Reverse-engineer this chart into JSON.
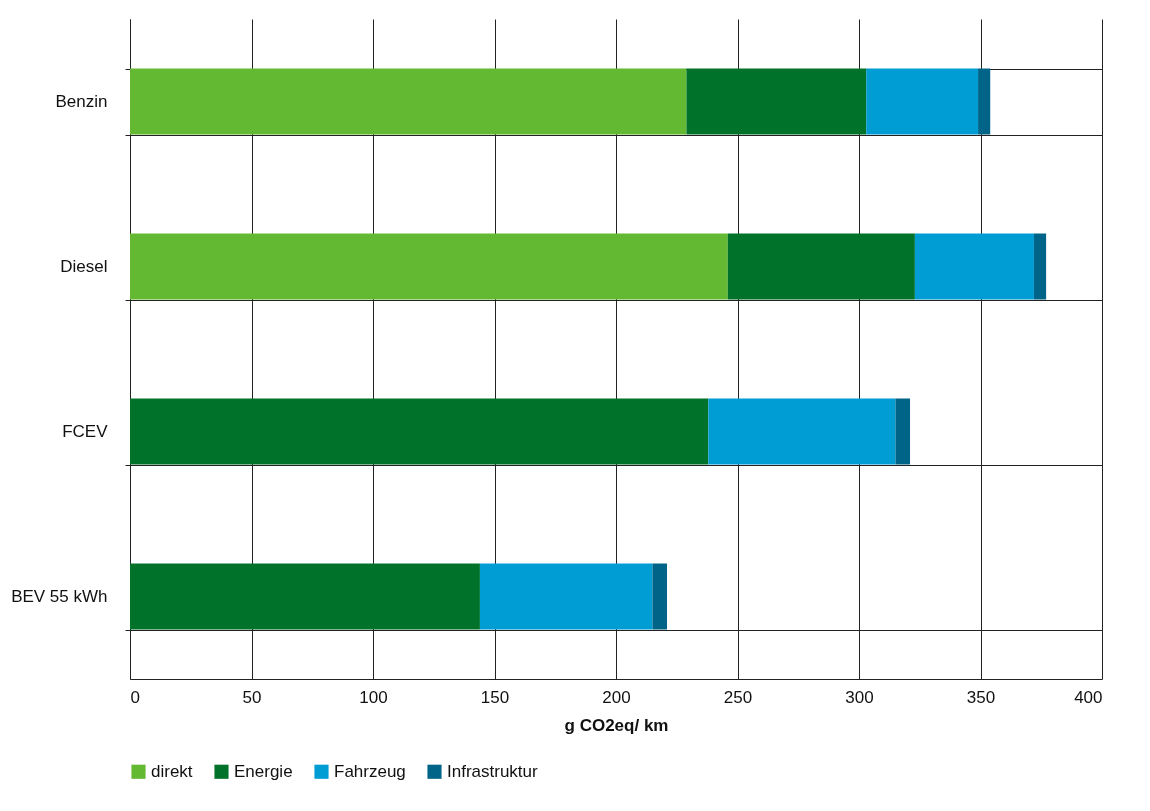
{
  "chart_data": {
    "type": "bar",
    "orientation": "horizontal",
    "stacked": true,
    "xlabel": "g CO2eq/ km",
    "categories": [
      "Benzin",
      "Diesel",
      "FCEV",
      "BEV 55 kWh"
    ],
    "series": [
      {
        "name": "direkt",
        "color": "#63b931",
        "values": [
          229,
          246,
          null,
          null
        ]
      },
      {
        "name": "Energie",
        "color": "#007229",
        "values": [
          74,
          77,
          238,
          144
        ]
      },
      {
        "name": "Fahrzeug",
        "color": "#009cd4",
        "values": [
          46,
          49,
          77,
          71
        ]
      },
      {
        "name": "Infrastruktur",
        "color": "#006488",
        "values": [
          5,
          5,
          6,
          6
        ]
      }
    ],
    "xlim": [
      0,
      400
    ],
    "xticks": [
      0,
      50,
      100,
      150,
      200,
      250,
      300,
      350,
      400
    ],
    "grid": true,
    "legend": "bottom"
  }
}
